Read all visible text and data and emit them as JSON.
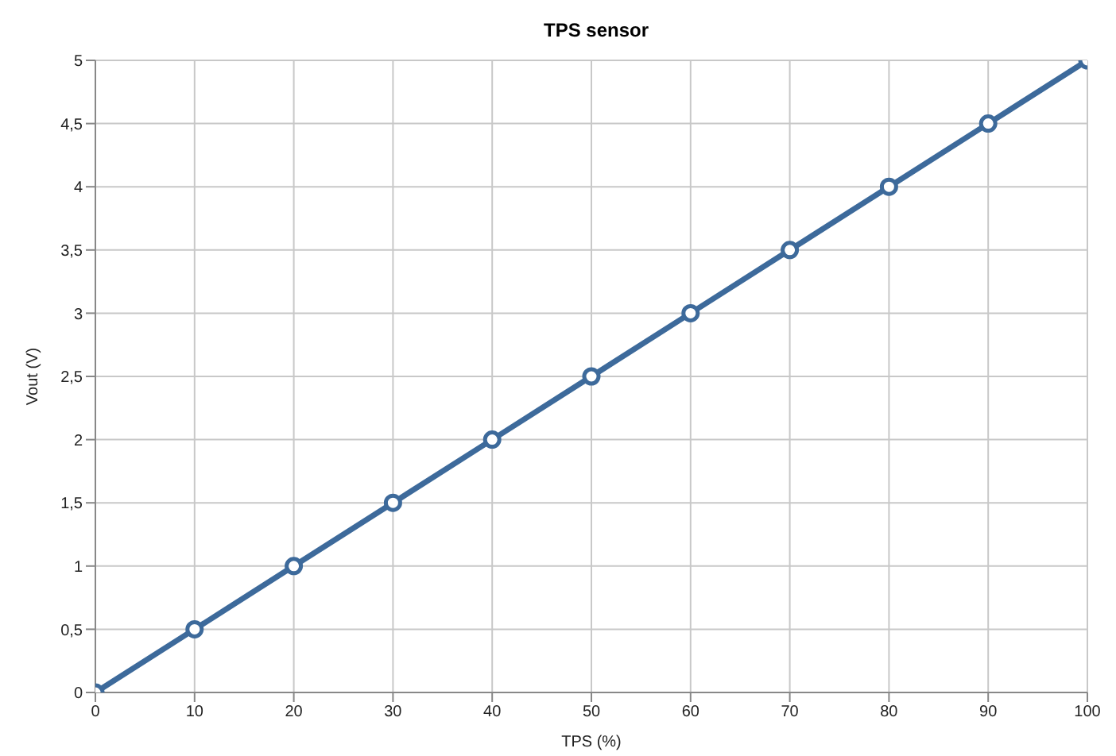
{
  "chart_data": {
    "type": "line",
    "title": "TPS sensor",
    "xlabel": "TPS (%)",
    "ylabel": "Vout (V)",
    "x": [
      0,
      10,
      20,
      30,
      40,
      50,
      60,
      70,
      80,
      90,
      100
    ],
    "series": [
      {
        "color": "#3d6a9b",
        "values": [
          0,
          0.5,
          1,
          1.5,
          2,
          2.5,
          3,
          3.5,
          4,
          4.5,
          5
        ]
      }
    ],
    "xlim": [
      0,
      100
    ],
    "xticks": [
      0,
      10,
      20,
      30,
      40,
      50,
      60,
      70,
      80,
      90,
      100
    ],
    "ylim": [
      0,
      5
    ],
    "yticks": [
      0,
      {
        "value": 0.5,
        "label": "0,5"
      },
      1,
      {
        "value": 1.5,
        "label": "1,5"
      },
      2,
      {
        "value": 2.5,
        "label": "2,5"
      },
      3,
      {
        "value": 3.5,
        "label": "3,5"
      },
      4,
      {
        "value": 4.5,
        "label": "4,5"
      },
      5
    ],
    "grid": true,
    "marker": "circle",
    "line_style": "solid",
    "legend": false
  }
}
